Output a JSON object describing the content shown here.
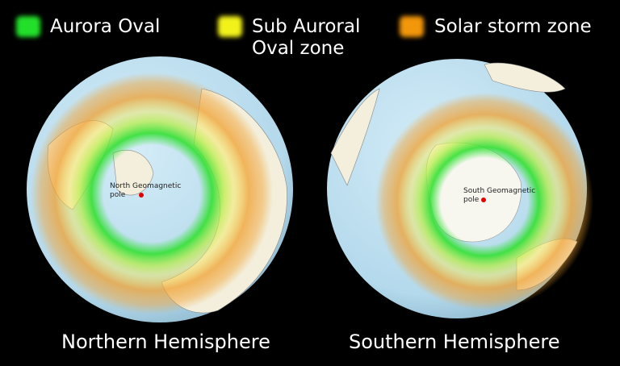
{
  "legend": [
    {
      "label": "Aurora Oval",
      "color": "#22e02a"
    },
    {
      "label": "Sub Auroral Oval zone",
      "line1": "Sub Auroral",
      "line2": "Oval zone",
      "color": "#f2f21a"
    },
    {
      "label": "Solar storm zone",
      "color": "#f2960a"
    }
  ],
  "colors": {
    "ocean": "#bde0f2",
    "land": "#f3efdc",
    "pole_marker": "#e00000"
  },
  "north": {
    "title": "Northern Hemisphere",
    "pole_line1": "North Geomagnetic",
    "pole_line2": "pole"
  },
  "south": {
    "title": "Southern Hemisphere",
    "pole_line1": "South Geomagnetic",
    "pole_line2": "pole"
  }
}
